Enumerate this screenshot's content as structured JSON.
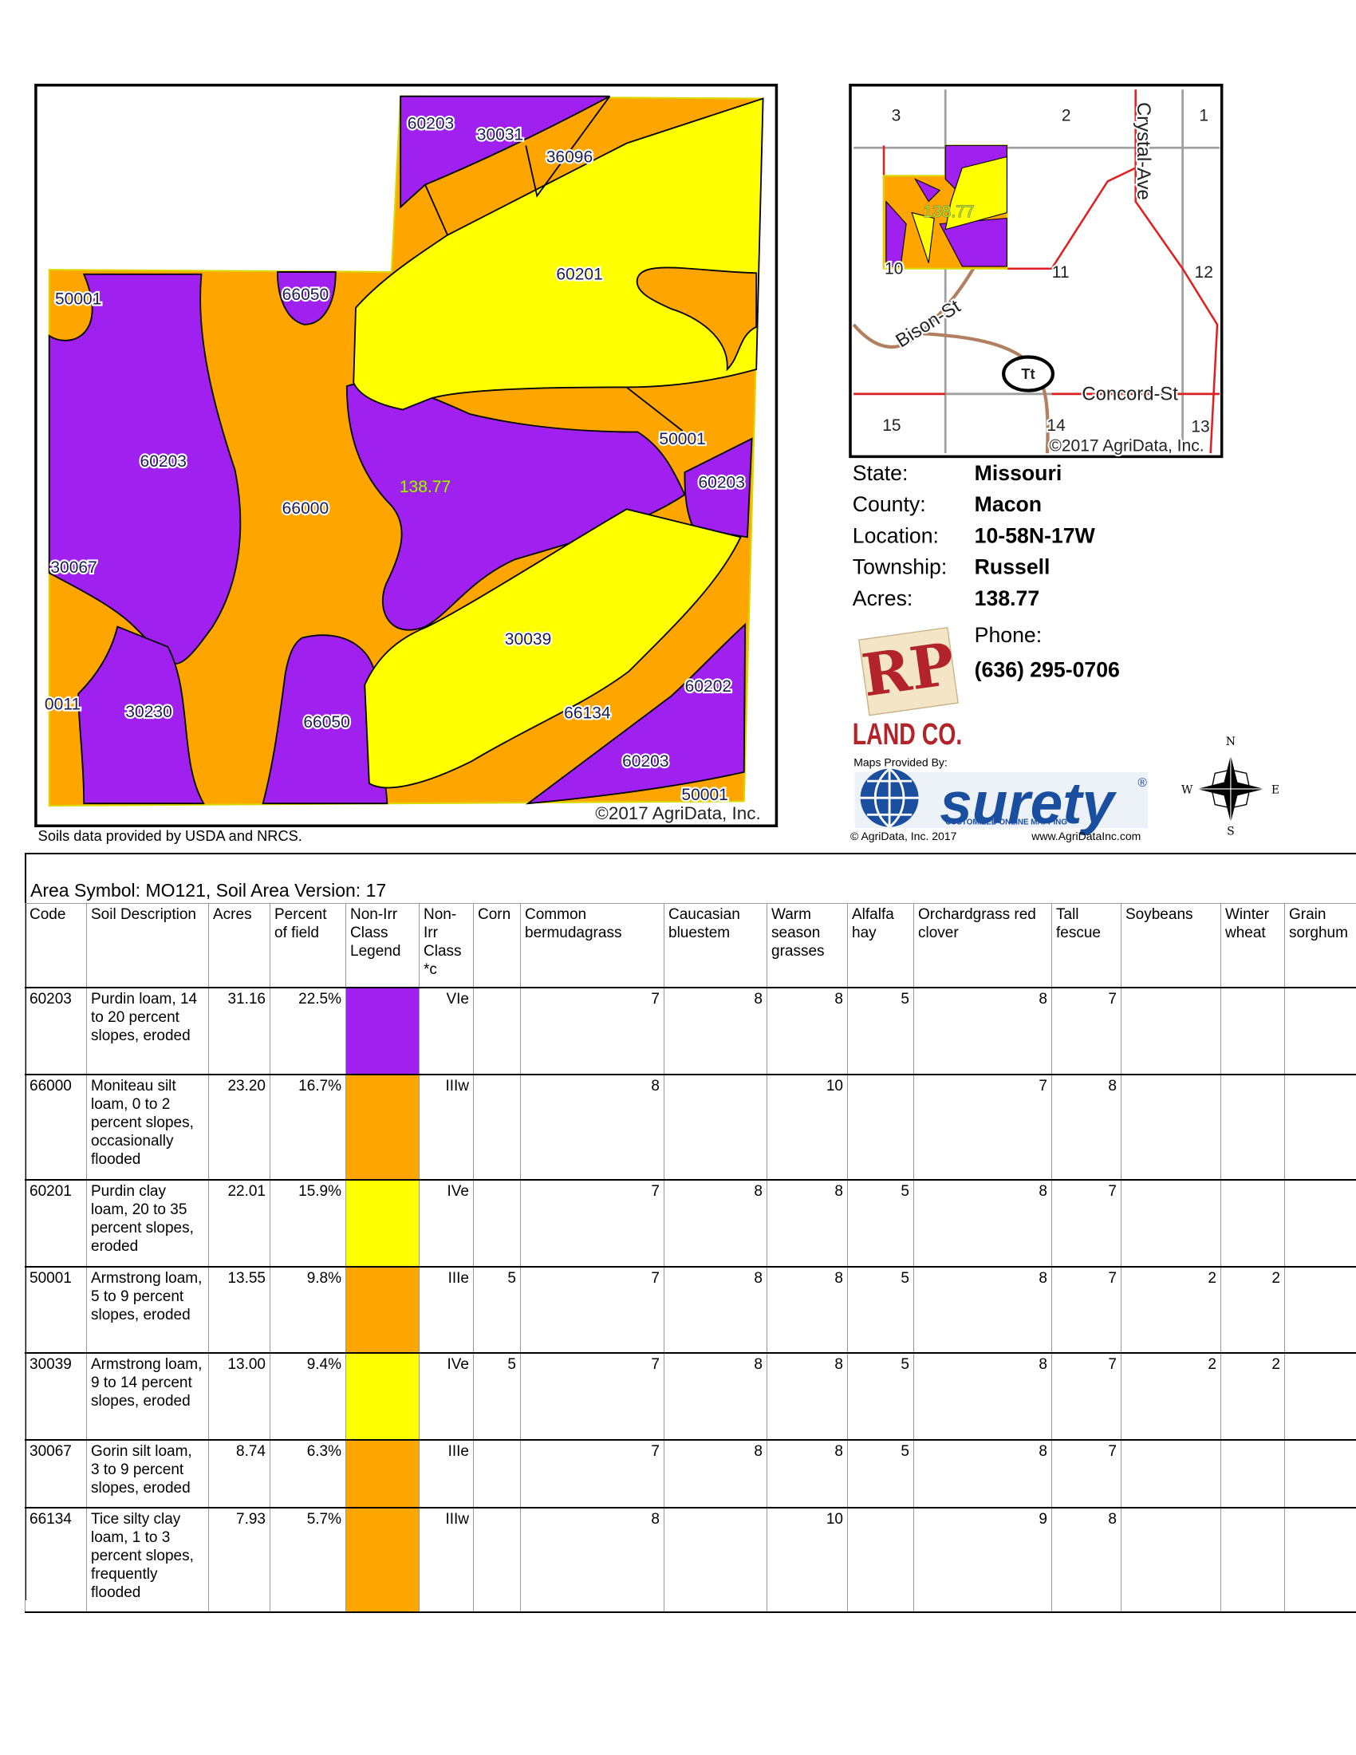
{
  "soil_map": {
    "labels": [
      "60203",
      "30031",
      "36096",
      "60201",
      "50001",
      "66050",
      "60203",
      "138.77",
      "66000",
      "50001",
      "60203",
      "30067",
      "30039",
      "60202",
      "0011",
      "30230",
      "66050",
      "66134",
      "60203",
      "50001"
    ],
    "copyright": "©2017 AgriData, Inc."
  },
  "source_note": "Soils data provided by USDA and NRCS.",
  "location_map": {
    "labels": [
      "3",
      "2",
      "1",
      "Crystal-Ave",
      "138.77",
      "10",
      "11",
      "12",
      "Bison-St",
      "Tt",
      "Concord-St",
      "15",
      "14",
      "13",
      "©2017 AgriData, Inc."
    ]
  },
  "info": {
    "fields": [
      {
        "label": "State:",
        "value": "Missouri"
      },
      {
        "label": "County:",
        "value": "Macon"
      },
      {
        "label": "Location:",
        "value": "10-58N-17W"
      },
      {
        "label": "Township:",
        "value": "Russell"
      },
      {
        "label": "Acres:",
        "value": "138.77"
      }
    ],
    "phone_label": "Phone:",
    "phone": "(636) 295-0706"
  },
  "logos": {
    "rp_mark": "RP",
    "land_co": "LAND CO.",
    "maps_provided": "Maps Provided By:",
    "surety": "surety",
    "registered": "®",
    "surety_tagline": "CUSTOMIZED ONLINE MAPPING",
    "agridata": "© AgriData, Inc. 2017",
    "website": "www.AgriDataInc.com"
  },
  "compass": {
    "n": "N",
    "e": "E",
    "s": "S",
    "w": "W"
  },
  "table": {
    "title": "Area Symbol: MO121, Soil Area Version: 17",
    "headers": [
      "Code",
      "Soil Description",
      "Acres",
      "Percent of field",
      "Non-Irr Class Legend",
      "Non-Irr Class *c",
      "Corn",
      "Common bermudagrass",
      "Caucasian bluestem",
      "Warm season grasses",
      "Alfalfa hay",
      "Orchardgrass red clover",
      "Tall fescue",
      "Soybeans",
      "Winter wheat",
      "Grain sorghum"
    ],
    "rows": [
      {
        "code": "60203",
        "description": "Purdin loam, 14 to 20 percent slopes, eroded",
        "acres": "31.16",
        "percent": "22.5%",
        "legend_color": "#a020f0",
        "class": "VIe",
        "yields": [
          null,
          7,
          8,
          8,
          5,
          8,
          7,
          null,
          null,
          null
        ]
      },
      {
        "code": "66000",
        "description": "Moniteau silt loam, 0 to 2 percent slopes, occasionally flooded",
        "acres": "23.20",
        "percent": "16.7%",
        "legend_color": "#ffa500",
        "class": "IIIw",
        "yields": [
          null,
          8,
          null,
          10,
          null,
          7,
          8,
          null,
          null,
          null
        ]
      },
      {
        "code": "60201",
        "description": "Purdin clay loam, 20 to 35 percent slopes, eroded",
        "acres": "22.01",
        "percent": "15.9%",
        "legend_color": "#ffff00",
        "class": "IVe",
        "yields": [
          null,
          7,
          8,
          8,
          5,
          8,
          7,
          null,
          null,
          null
        ]
      },
      {
        "code": "50001",
        "description": "Armstrong loam, 5 to 9 percent slopes, eroded",
        "acres": "13.55",
        "percent": "9.8%",
        "legend_color": "#ffa500",
        "class": "IIIe",
        "yields": [
          5,
          7,
          8,
          8,
          5,
          8,
          7,
          2,
          2,
          null
        ]
      },
      {
        "code": "30039",
        "description": "Armstrong loam, 9 to 14 percent slopes, eroded",
        "acres": "13.00",
        "percent": "9.4%",
        "legend_color": "#ffff00",
        "class": "IVe",
        "yields": [
          5,
          7,
          8,
          8,
          5,
          8,
          7,
          2,
          2,
          null
        ]
      },
      {
        "code": "30067",
        "description": "Gorin silt loam, 3 to 9 percent slopes, eroded",
        "acres": "8.74",
        "percent": "6.3%",
        "legend_color": "#ffa500",
        "class": "IIIe",
        "yields": [
          null,
          7,
          8,
          8,
          5,
          8,
          7,
          null,
          null,
          null
        ]
      },
      {
        "code": "66134",
        "description": "Tice silty clay loam, 1 to 3 percent slopes, frequently flooded",
        "acres": "7.93",
        "percent": "5.7%",
        "legend_color": "#ffa500",
        "class": "IIIw",
        "yields": [
          null,
          8,
          null,
          10,
          null,
          9,
          8,
          null,
          null,
          null
        ]
      }
    ]
  }
}
